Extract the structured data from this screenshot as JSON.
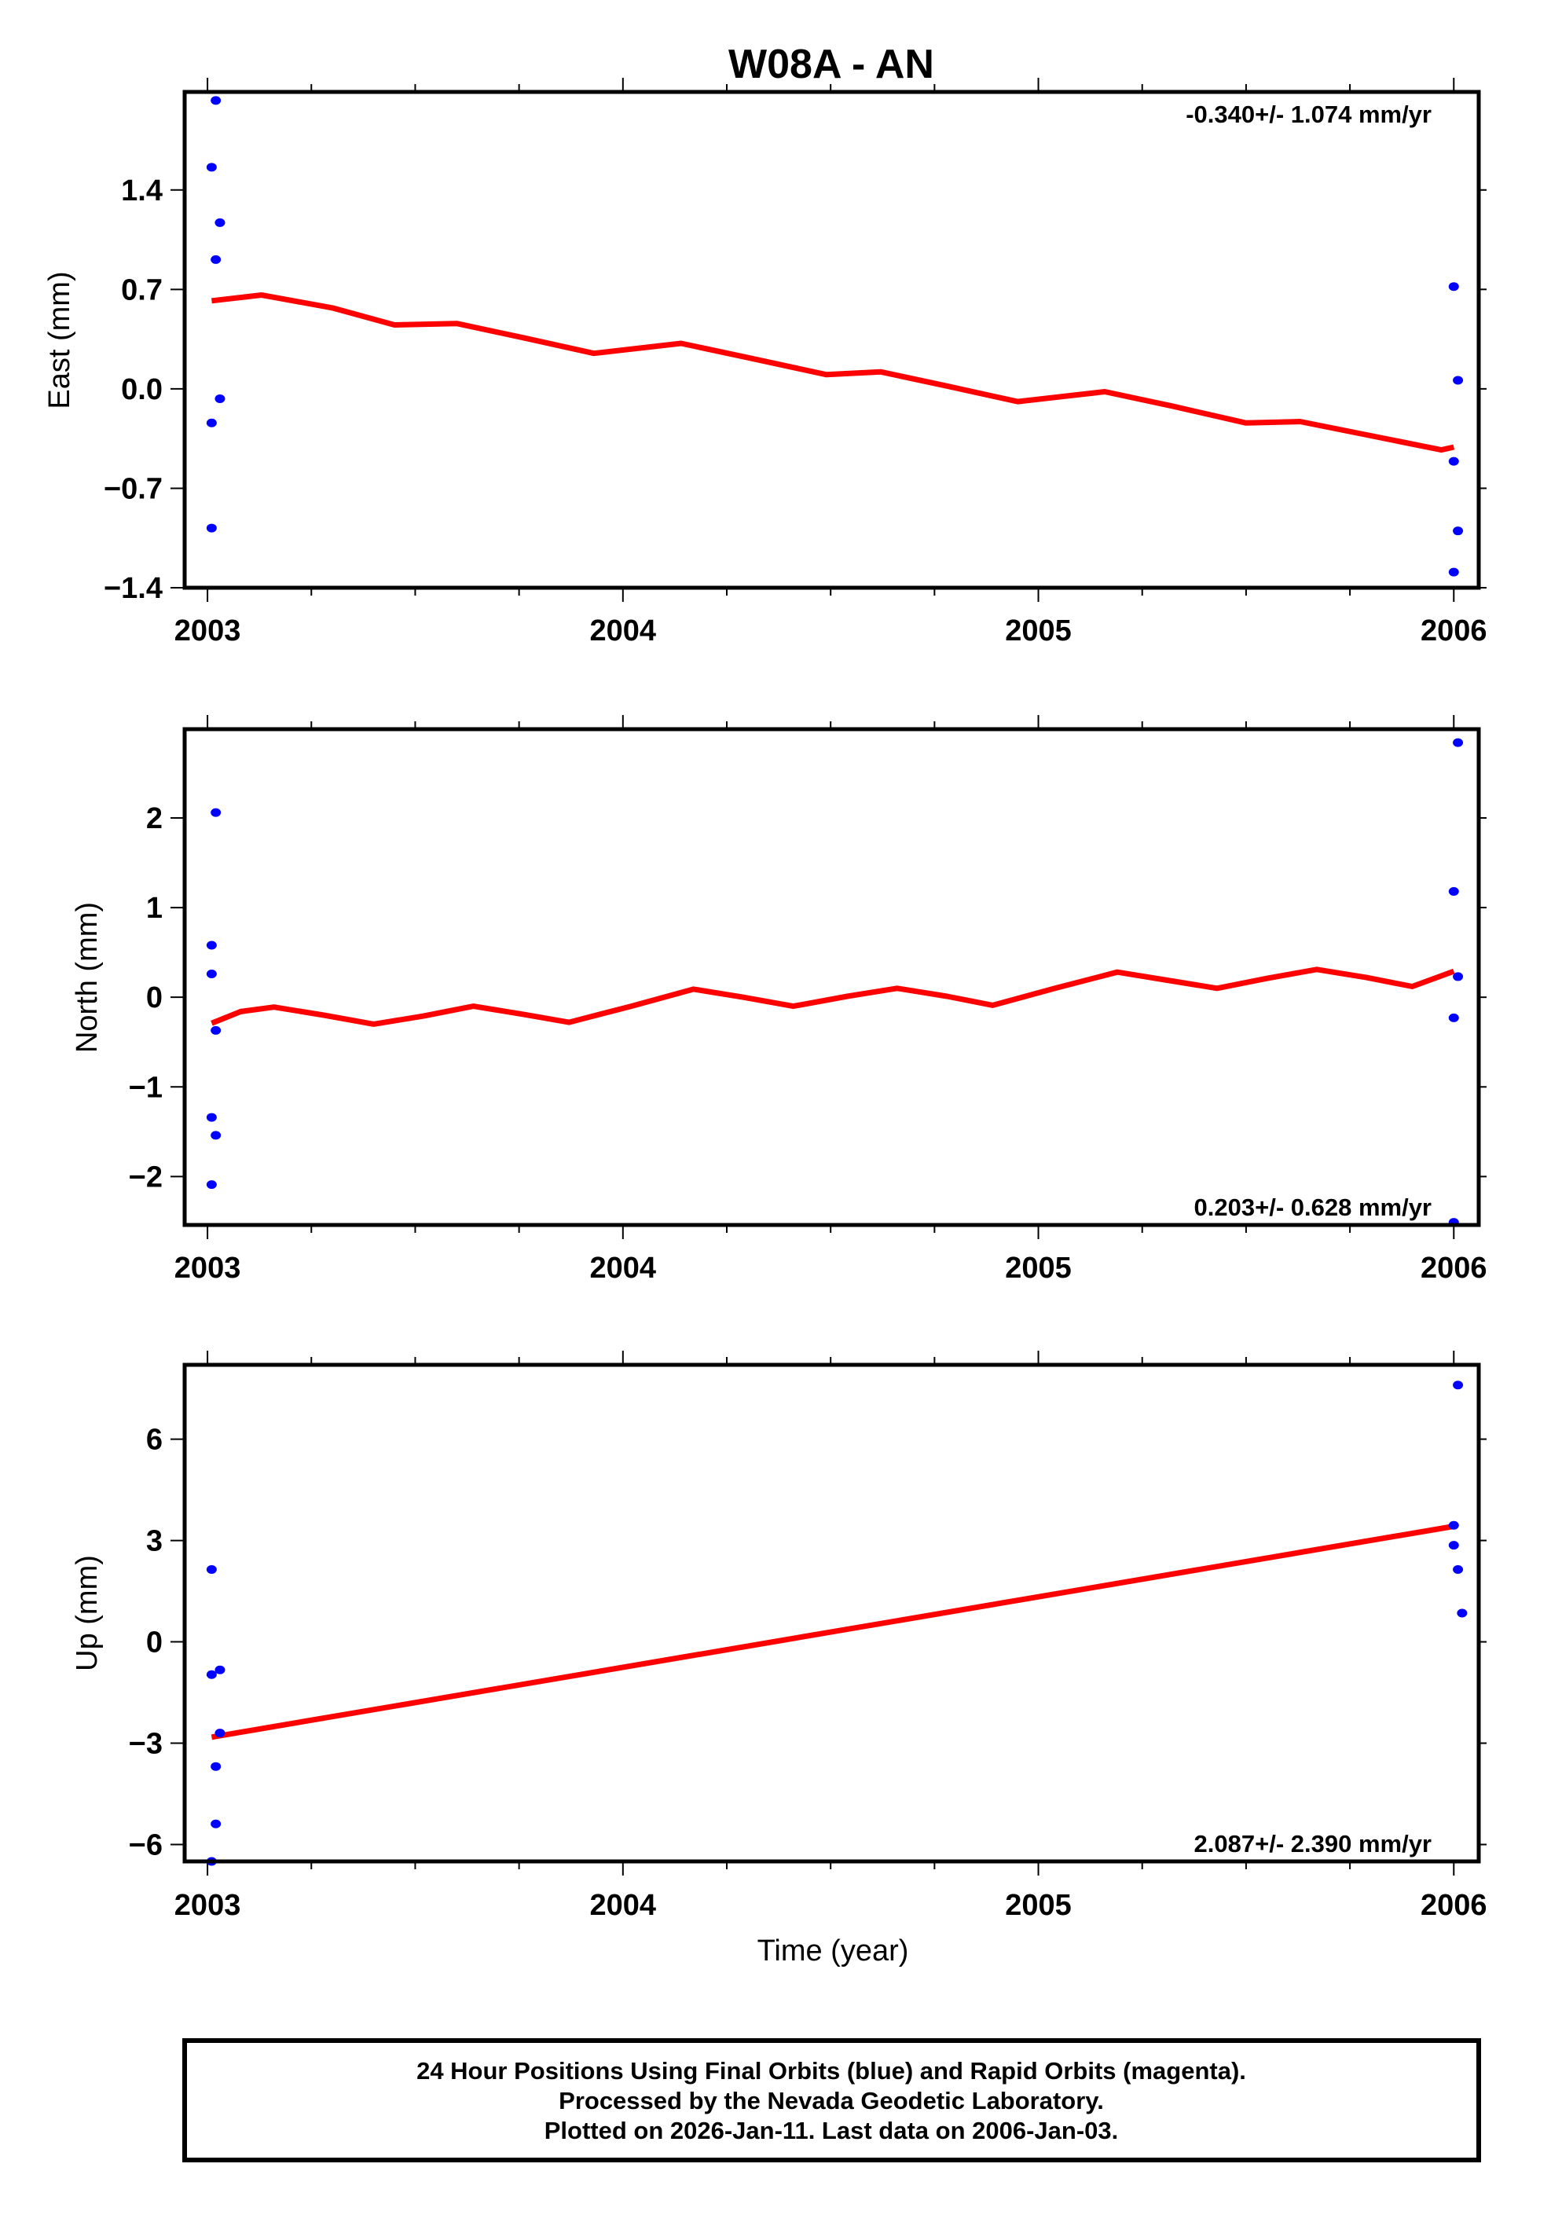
{
  "chart_data": {
    "type": "scatter",
    "title": "W08A - AN",
    "xlabel": "Time (year)",
    "xlim": [
      2002.945,
      2006.06
    ],
    "xticks": [
      2003,
      2004,
      2005,
      2006
    ],
    "xtick_labels": [
      "2003",
      "2004",
      "2005",
      "2006"
    ],
    "xminor_step": 0.25,
    "colors": {
      "points": "#0000ff",
      "model": "#ff0000",
      "frame": "#000000"
    },
    "panels": [
      {
        "name": "east",
        "ylabel": "East (mm)",
        "ylim": [
          -1.4,
          2.09
        ],
        "yticks": [
          -1.4,
          -0.7,
          0.0,
          0.7,
          1.4
        ],
        "ytick_labels": [
          "−1.4",
          "−0.7",
          "0.0",
          "0.7",
          "1.4"
        ],
        "rate_label": "-0.340+/- 1.074 mm/yr",
        "rate_position": "top-right",
        "points": [
          [
            2003.02,
            2.03
          ],
          [
            2003.01,
            1.56
          ],
          [
            2003.03,
            1.17
          ],
          [
            2003.02,
            0.91
          ],
          [
            2003.03,
            -0.07
          ],
          [
            2003.01,
            -0.24
          ],
          [
            2003.01,
            -0.98
          ],
          [
            2006.0,
            0.72
          ],
          [
            2006.01,
            0.06
          ],
          [
            2006.0,
            -0.51
          ],
          [
            2006.01,
            -1.0
          ],
          [
            2006.0,
            -1.29
          ]
        ],
        "model": [
          [
            2003.01,
            0.62
          ],
          [
            2003.13,
            0.66
          ],
          [
            2003.3,
            0.57
          ],
          [
            2003.45,
            0.45
          ],
          [
            2003.6,
            0.46
          ],
          [
            2003.76,
            0.36
          ],
          [
            2003.93,
            0.25
          ],
          [
            2004.14,
            0.32
          ],
          [
            2004.3,
            0.22
          ],
          [
            2004.49,
            0.1
          ],
          [
            2004.62,
            0.12
          ],
          [
            2004.78,
            0.02
          ],
          [
            2004.95,
            -0.09
          ],
          [
            2005.16,
            -0.02
          ],
          [
            2005.32,
            -0.12
          ],
          [
            2005.5,
            -0.24
          ],
          [
            2005.63,
            -0.23
          ],
          [
            2005.8,
            -0.33
          ],
          [
            2005.97,
            -0.43
          ],
          [
            2006.0,
            -0.41
          ]
        ]
      },
      {
        "name": "north",
        "ylabel": "North (mm)",
        "ylim": [
          -2.54,
          2.99
        ],
        "yticks": [
          -2,
          -1,
          0,
          1,
          2
        ],
        "ytick_labels": [
          "−2",
          "−1",
          "0",
          "1",
          "2"
        ],
        "rate_label": "0.203+/- 0.628 mm/yr",
        "rate_position": "bottom-right",
        "points": [
          [
            2003.02,
            2.06
          ],
          [
            2003.01,
            0.58
          ],
          [
            2003.01,
            0.26
          ],
          [
            2003.02,
            -0.37
          ],
          [
            2003.01,
            -1.34
          ],
          [
            2003.02,
            -1.54
          ],
          [
            2003.01,
            -2.09
          ],
          [
            2006.01,
            2.84
          ],
          [
            2006.0,
            1.18
          ],
          [
            2006.01,
            0.23
          ],
          [
            2006.0,
            -0.23
          ],
          [
            2006.0,
            -2.51
          ]
        ],
        "model": [
          [
            2003.01,
            -0.29
          ],
          [
            2003.08,
            -0.16
          ],
          [
            2003.16,
            -0.11
          ],
          [
            2003.28,
            -0.2
          ],
          [
            2003.4,
            -0.3
          ],
          [
            2003.52,
            -0.21
          ],
          [
            2003.64,
            -0.1
          ],
          [
            2003.76,
            -0.19
          ],
          [
            2003.87,
            -0.28
          ],
          [
            2004.02,
            -0.1
          ],
          [
            2004.17,
            0.09
          ],
          [
            2004.29,
            0.0
          ],
          [
            2004.41,
            -0.1
          ],
          [
            2004.54,
            0.01
          ],
          [
            2004.66,
            0.1
          ],
          [
            2004.78,
            0.01
          ],
          [
            2004.89,
            -0.09
          ],
          [
            2005.04,
            0.1
          ],
          [
            2005.19,
            0.28
          ],
          [
            2005.31,
            0.19
          ],
          [
            2005.43,
            0.1
          ],
          [
            2005.55,
            0.21
          ],
          [
            2005.67,
            0.31
          ],
          [
            2005.79,
            0.22
          ],
          [
            2005.9,
            0.12
          ],
          [
            2006.0,
            0.29
          ]
        ]
      },
      {
        "name": "up",
        "ylabel": "Up (mm)",
        "ylim": [
          -6.5,
          8.2
        ],
        "yticks": [
          -6,
          -3,
          0,
          3,
          6
        ],
        "ytick_labels": [
          "−6",
          "−3",
          "0",
          "3",
          "6"
        ],
        "rate_label": "2.087+/- 2.390 mm/yr",
        "rate_position": "bottom-right",
        "points": [
          [
            2003.01,
            2.14
          ],
          [
            2003.03,
            -0.83
          ],
          [
            2003.01,
            -0.97
          ],
          [
            2003.03,
            -2.7
          ],
          [
            2003.02,
            -3.69
          ],
          [
            2003.02,
            -5.39
          ],
          [
            2003.01,
            -6.5
          ],
          [
            2006.01,
            7.6
          ],
          [
            2006.0,
            3.45
          ],
          [
            2006.0,
            2.86
          ],
          [
            2006.01,
            2.14
          ],
          [
            2006.02,
            0.85
          ]
        ],
        "model": [
          [
            2003.01,
            -2.82
          ],
          [
            2006.0,
            3.42
          ]
        ]
      }
    ]
  },
  "footer": {
    "lines": [
      "24 Hour Positions Using Final Orbits (blue) and Rapid Orbits (magenta).",
      "Processed by the Nevada Geodetic Laboratory.",
      "Plotted on 2026-Jan-11. Last data on 2006-Jan-03."
    ]
  }
}
